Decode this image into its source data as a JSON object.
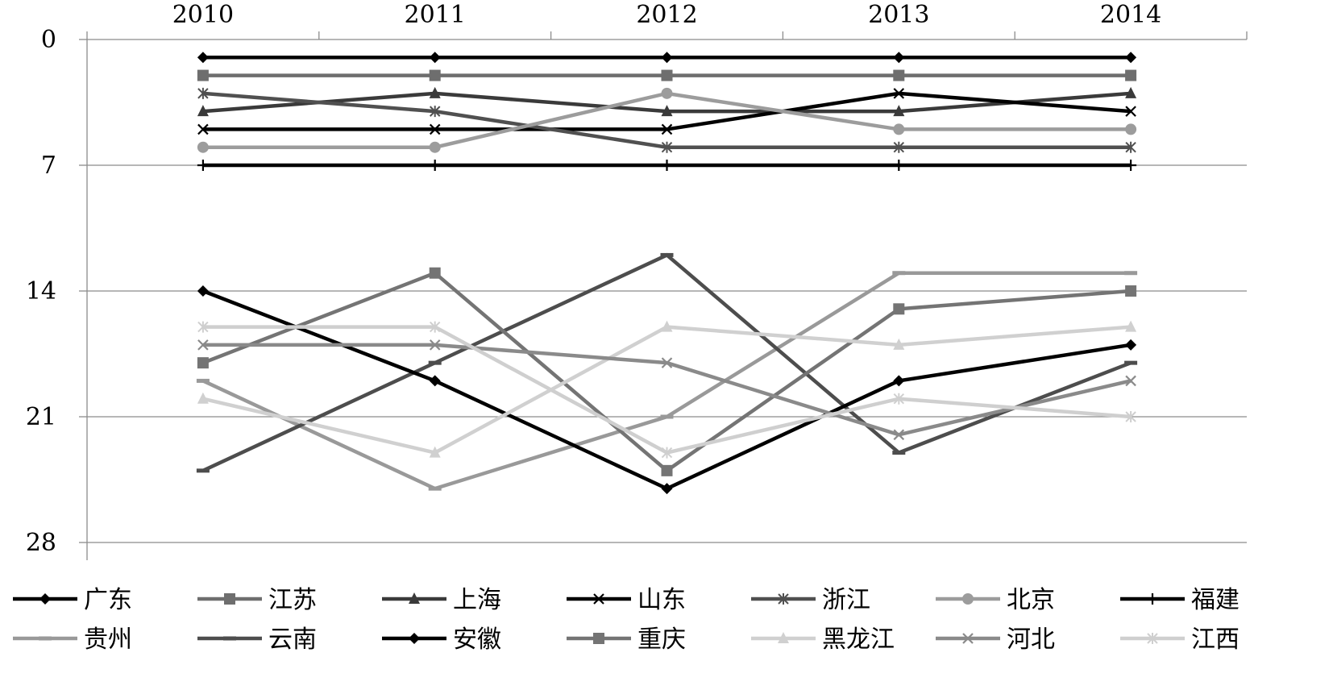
{
  "chart_data": {
    "type": "line",
    "x_axis_position": "top",
    "y_axis_reversed": true,
    "categories": [
      "2010",
      "2011",
      "2012",
      "2013",
      "2014"
    ],
    "y_ticks": [
      "0",
      "7",
      "14",
      "21",
      "28"
    ],
    "ylim": [
      0,
      28
    ],
    "grid": true,
    "legend_position": "bottom",
    "series": [
      {
        "name": "广东",
        "values": [
          1,
          1,
          1,
          1,
          1
        ],
        "color": "#000000",
        "marker": "diamond"
      },
      {
        "name": "江苏",
        "values": [
          2,
          2,
          2,
          2,
          2
        ],
        "color": "#6e6e6e",
        "marker": "square"
      },
      {
        "name": "上海",
        "values": [
          4,
          3,
          4,
          4,
          3
        ],
        "color": "#3a3a3a",
        "marker": "triangle"
      },
      {
        "name": "山东",
        "values": [
          5,
          5,
          5,
          3,
          4
        ],
        "color": "#000000",
        "marker": "x"
      },
      {
        "name": "浙江",
        "values": [
          3,
          4,
          6,
          6,
          6
        ],
        "color": "#505050",
        "marker": "asterisk"
      },
      {
        "name": "北京",
        "values": [
          6,
          6,
          3,
          5,
          5
        ],
        "color": "#9c9c9c",
        "marker": "circle"
      },
      {
        "name": "福建",
        "values": [
          7,
          7,
          7,
          7,
          7
        ],
        "color": "#000000",
        "marker": "plus"
      },
      {
        "name": "贵州",
        "values": [
          19,
          25,
          21,
          13,
          13
        ],
        "color": "#999999",
        "marker": "dash"
      },
      {
        "name": "云南",
        "values": [
          24,
          18,
          12,
          23,
          18
        ],
        "color": "#4d4d4d",
        "marker": "dash"
      },
      {
        "name": "安徽",
        "values": [
          14,
          19,
          25,
          19,
          17
        ],
        "color": "#000000",
        "marker": "diamond"
      },
      {
        "name": "重庆",
        "values": [
          18,
          13,
          24,
          15,
          14
        ],
        "color": "#747474",
        "marker": "square"
      },
      {
        "name": "黑龙江",
        "values": [
          20,
          23,
          16,
          17,
          16
        ],
        "color": "#d0d0d0",
        "marker": "triangle"
      },
      {
        "name": "河北",
        "values": [
          17,
          17,
          18,
          22,
          19
        ],
        "color": "#8a8a8a",
        "marker": "x"
      },
      {
        "name": "江西",
        "values": [
          16,
          16,
          23,
          20,
          21
        ],
        "color": "#cfcfcf",
        "marker": "asterisk"
      }
    ]
  }
}
